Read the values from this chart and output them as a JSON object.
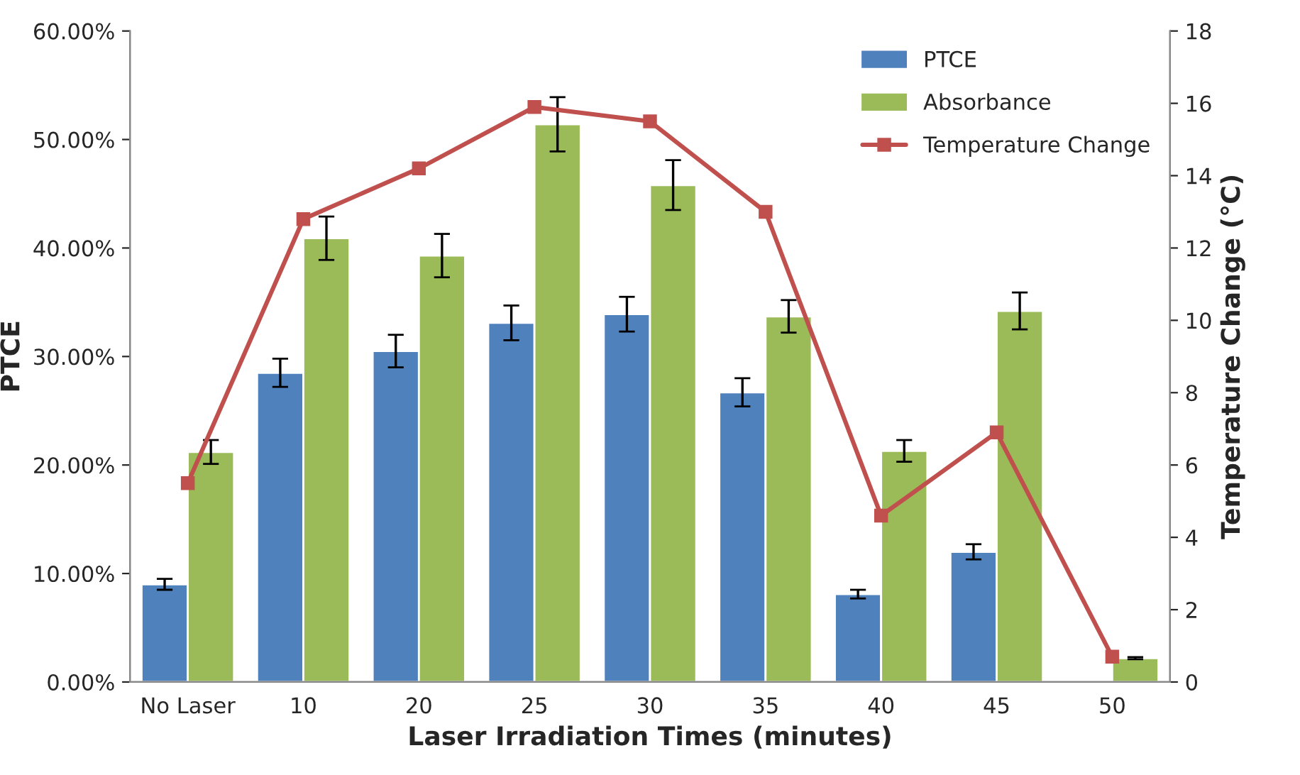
{
  "chart_data": {
    "type": "bar",
    "xlabel": "Laser Irradiation Times (minutes)",
    "ylabel": "PTCE",
    "y2label": "Temperature Change (°C)",
    "categories": [
      "No Laser",
      "10",
      "20",
      "25",
      "30",
      "35",
      "40",
      "45",
      "50"
    ],
    "series": [
      {
        "name": "PTCE",
        "color": "#4f81bd",
        "values": [
          9.0,
          28.5,
          30.5,
          33.1,
          33.9,
          26.7,
          8.1,
          12.0,
          null
        ],
        "errors": [
          0.5,
          1.3,
          1.5,
          1.6,
          1.6,
          1.3,
          0.4,
          0.7,
          null
        ]
      },
      {
        "name": "Absorbance",
        "color": "#9bbb59",
        "values": [
          21.2,
          40.9,
          39.3,
          51.4,
          45.8,
          33.7,
          21.3,
          34.2,
          2.2
        ],
        "errors": [
          1.1,
          2.0,
          2.0,
          2.5,
          2.3,
          1.5,
          1.0,
          1.7,
          0.1
        ]
      },
      {
        "name": "Temperature Change",
        "color": "#c0504d",
        "type": "line",
        "axis": "y2",
        "marker": "square",
        "values": [
          5.5,
          12.8,
          14.2,
          15.9,
          15.5,
          13.0,
          4.6,
          6.9,
          0.7
        ]
      }
    ],
    "ylim": [
      0,
      60
    ],
    "yticks": [
      {
        "value": 0,
        "label": "0.00%"
      },
      {
        "value": 10,
        "label": "10.00%"
      },
      {
        "value": 20,
        "label": "20.00%"
      },
      {
        "value": 30,
        "label": "30.00%"
      },
      {
        "value": 40,
        "label": "40.00%"
      },
      {
        "value": 50,
        "label": "50.00%"
      },
      {
        "value": 60,
        "label": "60.00%"
      }
    ],
    "y2lim": [
      0,
      18
    ],
    "y2ticks": [
      0,
      2,
      4,
      6,
      8,
      10,
      12,
      14,
      16,
      18
    ],
    "legend": "top right",
    "grid": false
  }
}
